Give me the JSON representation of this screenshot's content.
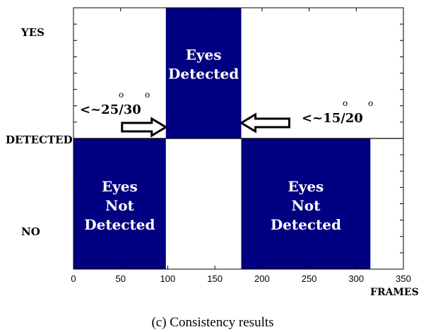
{
  "chart_data": {
    "type": "bar",
    "xlabel": "FRAMES",
    "xlim": [
      0,
      350
    ],
    "xticks": [
      0,
      50,
      100,
      150,
      200,
      250,
      300,
      350
    ],
    "ylabels": {
      "top": "YES",
      "middle": "DETECTED",
      "bottom": "NO"
    },
    "bar_color": "#000080",
    "segments": [
      {
        "x_start": 0,
        "x_end": 98,
        "state": "NO",
        "label_lines": [
          "Eyes",
          "Not",
          "Detected"
        ]
      },
      {
        "x_start": 98,
        "x_end": 178,
        "state": "YES",
        "label_lines": [
          "Eyes",
          "Detected"
        ]
      },
      {
        "x_start": 178,
        "x_end": 315,
        "state": "NO",
        "label_lines": [
          "Eyes",
          "Not",
          "Detected"
        ]
      }
    ],
    "annotations": [
      {
        "text": "<~25/30",
        "degree_marks": [
          "o",
          "o"
        ],
        "arrow": "right",
        "at_x": 98
      },
      {
        "text": "<~15/20",
        "degree_marks": [
          "o",
          "o"
        ],
        "arrow": "left",
        "at_x": 178
      }
    ]
  },
  "caption": "(c) Consistency results"
}
